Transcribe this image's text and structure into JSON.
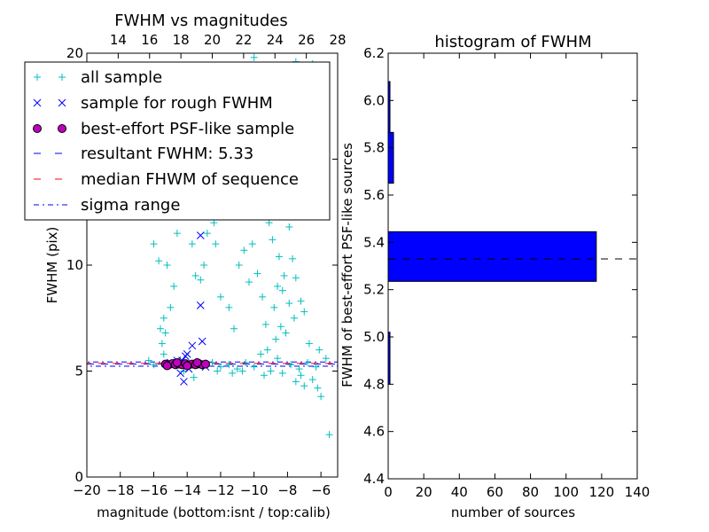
{
  "chart_data": [
    {
      "type": "scatter",
      "title": "FWHM vs magnitudes",
      "xlabel": "magnitude (bottom:isnt / top:calib)",
      "ylabel": "FWHM (pix)",
      "xlim": [
        -20,
        -5
      ],
      "ylim": [
        0,
        20
      ],
      "top_xlim": [
        12,
        28
      ],
      "x_ticks": [
        "−20",
        "−18",
        "−16",
        "−14",
        "−12",
        "−10",
        "−8",
        "−6"
      ],
      "x_tick_values": [
        -20,
        -18,
        -16,
        -14,
        -12,
        -10,
        -8,
        -6
      ],
      "top_ticks": [
        "14",
        "16",
        "18",
        "20",
        "22",
        "24",
        "26",
        "28"
      ],
      "top_tick_values": [
        14,
        16,
        18,
        20,
        22,
        24,
        26,
        28
      ],
      "y_ticks": [
        "0",
        "5",
        "10",
        "15",
        "20"
      ],
      "y_tick_values": [
        0,
        5,
        10,
        15,
        20
      ],
      "legend_position": "upper-left",
      "grid": false,
      "legend": [
        {
          "label": "all sample",
          "marker": "plus",
          "color": "#00bfbf"
        },
        {
          "label": "sample for rough FWHM",
          "marker": "x",
          "color": "#0000ff"
        },
        {
          "label": "best-effort PSF-like sample",
          "marker": "circle",
          "color": "#bf00bf"
        },
        {
          "label": "resultant FWHM: 5.33",
          "marker": "dash",
          "color": "#0000ff"
        },
        {
          "label": "median FHWM of sequence",
          "marker": "dash",
          "color": "#ff0000"
        },
        {
          "label": "sigma range",
          "marker": "dashdot",
          "color": "#0000ff"
        }
      ],
      "series": [
        {
          "name": "all sample",
          "points": [
            [
              -5.5,
              2.0
            ],
            [
              -6.0,
              3.8
            ],
            [
              -6.2,
              4.2
            ],
            [
              -6.5,
              4.6
            ],
            [
              -7.0,
              4.3
            ],
            [
              -7.2,
              4.8
            ],
            [
              -7.5,
              4.5
            ],
            [
              -6.3,
              5.2
            ],
            [
              -6.8,
              5.4
            ],
            [
              -7.3,
              5.1
            ],
            [
              -7.8,
              5.3
            ],
            [
              -8.3,
              4.9
            ],
            [
              -8.6,
              5.6
            ],
            [
              -9.0,
              5.0
            ],
            [
              -9.4,
              4.8
            ],
            [
              -10.0,
              5.2
            ],
            [
              -10.5,
              5.4
            ],
            [
              -11.0,
              5.1
            ],
            [
              -11.5,
              5.3
            ],
            [
              -12.0,
              5.2
            ],
            [
              -12.5,
              5.4
            ],
            [
              -13.0,
              5.3
            ],
            [
              -14.0,
              5.2
            ],
            [
              -15.0,
              5.3
            ],
            [
              -16.0,
              5.3
            ],
            [
              -16.3,
              5.5
            ],
            [
              -5.7,
              5.6
            ],
            [
              -6.1,
              6.0
            ],
            [
              -6.7,
              6.3
            ],
            [
              -7.6,
              7.5
            ],
            [
              -7.9,
              8.2
            ],
            [
              -8.1,
              6.8
            ],
            [
              -8.4,
              7.1
            ],
            [
              -8.7,
              6.5
            ],
            [
              -9.2,
              6.0
            ],
            [
              -9.6,
              5.8
            ],
            [
              -8.2,
              9.5
            ],
            [
              -8.5,
              10.4
            ],
            [
              -8.9,
              11.2
            ],
            [
              -9.1,
              12.0
            ],
            [
              -8.3,
              8.8
            ],
            [
              -8.6,
              9.0
            ],
            [
              -8.8,
              8.0
            ],
            [
              -9.3,
              7.2
            ],
            [
              -9.5,
              8.5
            ],
            [
              -9.8,
              9.6
            ],
            [
              -10.1,
              11.0
            ],
            [
              -10.3,
              12.5
            ],
            [
              -9.7,
              13.5
            ],
            [
              -9.9,
              14.3
            ],
            [
              -8.1,
              12.8
            ],
            [
              -8.4,
              13.6
            ],
            [
              -7.9,
              11.8
            ],
            [
              -7.7,
              10.3
            ],
            [
              -7.5,
              9.4
            ],
            [
              -7.2,
              8.3
            ],
            [
              -7.0,
              7.8
            ],
            [
              -8.8,
              15.5
            ],
            [
              -9.2,
              16.2
            ],
            [
              -9.5,
              17.4
            ],
            [
              -9.8,
              18.5
            ],
            [
              -10.0,
              19.8
            ],
            [
              -7.5,
              19.6
            ],
            [
              -6.8,
              18.8
            ],
            [
              -6.5,
              19.5
            ],
            [
              -11.2,
              7.0
            ],
            [
              -11.5,
              8.0
            ],
            [
              -10.9,
              10.0
            ],
            [
              -10.6,
              10.7
            ],
            [
              -10.3,
              9.2
            ],
            [
              -11.0,
              12.8
            ],
            [
              -12.0,
              8.5
            ],
            [
              -12.3,
              11.0
            ],
            [
              -12.4,
              12.0
            ],
            [
              -12.6,
              13.0
            ],
            [
              -12.8,
              11.5
            ],
            [
              -13.0,
              10.0
            ],
            [
              -13.2,
              9.3
            ],
            [
              -13.5,
              9.5
            ],
            [
              -13.7,
              11.0
            ],
            [
              -13.9,
              12.3
            ],
            [
              -14.1,
              12.6
            ],
            [
              -14.6,
              11.5
            ],
            [
              -14.8,
              9.0
            ],
            [
              -15.0,
              8.0
            ],
            [
              -15.2,
              10.0
            ],
            [
              -15.4,
              7.5
            ],
            [
              -15.5,
              6.3
            ],
            [
              -15.6,
              7.0
            ],
            [
              -15.3,
              6.8
            ],
            [
              -15.4,
              5.8
            ],
            [
              -15.7,
              10.2
            ],
            [
              -15.9,
              12.5
            ],
            [
              -16.2,
              12.8
            ],
            [
              -16.0,
              11.0
            ],
            [
              -13.6,
              4.7
            ],
            [
              -14.2,
              5.0
            ],
            [
              -12.2,
              5.0
            ],
            [
              -11.3,
              4.9
            ],
            [
              -10.7,
              5.0
            ]
          ]
        },
        {
          "name": "sample for rough FWHM",
          "points": [
            [
              -13.2,
              11.4
            ],
            [
              -13.2,
              8.1
            ],
            [
              -13.1,
              6.4
            ],
            [
              -13.7,
              6.2
            ],
            [
              -14.0,
              5.8
            ],
            [
              -14.1,
              5.7
            ],
            [
              -14.3,
              5.5
            ],
            [
              -14.6,
              5.5
            ],
            [
              -15.0,
              5.4
            ],
            [
              -13.5,
              5.3
            ],
            [
              -14.4,
              4.9
            ],
            [
              -14.2,
              4.5
            ],
            [
              -13.9,
              5.1
            ],
            [
              -12.9,
              5.2
            ]
          ]
        },
        {
          "name": "best-effort PSF-like sample",
          "points": [
            [
              -15.3,
              5.33
            ],
            [
              -15.1,
              5.3
            ],
            [
              -14.9,
              5.35
            ],
            [
              -14.7,
              5.3
            ],
            [
              -14.5,
              5.33
            ],
            [
              -14.3,
              5.3
            ],
            [
              -14.1,
              5.35
            ],
            [
              -13.9,
              5.3
            ],
            [
              -13.7,
              5.33
            ],
            [
              -13.5,
              5.3
            ],
            [
              -13.3,
              5.35
            ],
            [
              -13.1,
              5.3
            ],
            [
              -12.9,
              5.33
            ],
            [
              -15.2,
              5.25
            ],
            [
              -14.6,
              5.4
            ],
            [
              -14.0,
              5.25
            ],
            [
              -13.4,
              5.4
            ]
          ]
        }
      ],
      "lines": [
        {
          "name": "resultant FWHM: 5.33",
          "y": 5.33,
          "color": "#0000ff",
          "style": "dashed"
        },
        {
          "name": "median FHWM of sequence",
          "y": 5.36,
          "color": "#ff0000",
          "style": "dashed"
        },
        {
          "name": "sigma range",
          "y": 5.23,
          "color": "#0000ff",
          "style": "dashdot"
        },
        {
          "name": "sigma range",
          "y": 5.43,
          "color": "#0000ff",
          "style": "dashdot"
        }
      ]
    },
    {
      "type": "bar",
      "orientation": "horizontal",
      "title": "histogram of FWHM",
      "xlabel": "number of sources",
      "ylabel": "FWHM of best-effort PSF-like sources",
      "xlim": [
        0,
        140
      ],
      "ylim": [
        4.4,
        6.2
      ],
      "x_ticks": [
        "0",
        "20",
        "40",
        "60",
        "80",
        "100",
        "120",
        "140"
      ],
      "x_tick_values": [
        0,
        20,
        40,
        60,
        80,
        100,
        120,
        140
      ],
      "y_ticks": [
        "4.4",
        "4.6",
        "4.8",
        "5.0",
        "5.2",
        "5.4",
        "5.6",
        "5.8",
        "6.0",
        "6.2"
      ],
      "y_tick_values": [
        4.4,
        4.6,
        4.8,
        5.0,
        5.2,
        5.4,
        5.6,
        5.8,
        6.0,
        6.2
      ],
      "bar_color": "#0000ff",
      "bins": [
        {
          "low": 4.8,
          "high": 5.02,
          "count": 1
        },
        {
          "low": 5.235,
          "high": 5.445,
          "count": 117
        },
        {
          "low": 5.65,
          "high": 5.865,
          "count": 3
        },
        {
          "low": 5.865,
          "high": 6.08,
          "count": 1
        }
      ],
      "reference_line": {
        "y": 5.33,
        "style": "dashed",
        "color": "#000000"
      }
    }
  ]
}
